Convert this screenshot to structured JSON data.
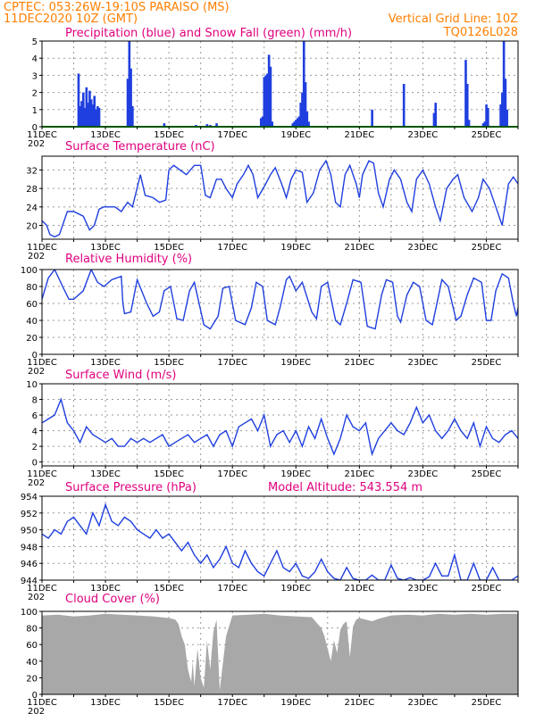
{
  "header": {
    "left_line1": "CPTEC:   053:26W-19:10S   PARAISO (MS)",
    "left_line2": "11DEC2020 10Z (GMT)",
    "right_line1": "Vertical Grid Line: 10Z",
    "right_line2": "TQ0126L028"
  },
  "colors": {
    "header": "#ff7f00",
    "title": "#e0007f",
    "line": "#1f3fdf",
    "snow": "#00aa00",
    "cloud": "#a8a8a8",
    "grid": "#9a9a9a"
  },
  "x_labels": [
    "11DEC",
    "13DEC",
    "15DEC",
    "17DEC",
    "19DEC",
    "21DEC",
    "23DEC",
    "25DEC"
  ],
  "year_label": "202",
  "chart_data": [
    {
      "id": "precip",
      "type": "bar",
      "title": "Precipitation (blue) and Snow Fall (green) (mm/h)",
      "yticks": [
        0,
        1,
        2,
        3,
        4,
        5
      ],
      "ylim": [
        0,
        5
      ],
      "xlim": [
        0,
        15
      ],
      "series": [
        {
          "name": "Precipitation",
          "color": "#1f3fdf",
          "x": [
            1.15,
            1.2,
            1.25,
            1.3,
            1.35,
            1.4,
            1.45,
            1.5,
            1.55,
            1.6,
            1.65,
            1.7,
            1.75,
            1.8,
            2.7,
            2.75,
            2.8,
            2.85,
            3.85,
            4.85,
            5.2,
            5.3,
            5.5,
            6.9,
            6.95,
            7.0,
            7.05,
            7.1,
            7.15,
            7.2,
            7.25,
            7.9,
            7.95,
            8.0,
            8.05,
            8.1,
            8.15,
            8.2,
            8.25,
            8.3,
            8.35,
            8.4,
            10.4,
            11.4,
            12.35,
            12.4,
            13.35,
            13.4,
            13.45,
            13.9,
            13.95,
            14.0,
            14.05,
            14.45,
            14.5,
            14.55,
            14.6,
            14.65
          ],
          "values": [
            3.1,
            1.2,
            1.5,
            2.0,
            1.1,
            2.3,
            1.4,
            2.1,
            1.6,
            1.3,
            1.8,
            1.0,
            1.2,
            1.1,
            2.8,
            5.0,
            3.4,
            1.2,
            0.2,
            0.1,
            0.15,
            0.1,
            0.2,
            0.5,
            0.6,
            2.9,
            3.0,
            3.1,
            4.2,
            3.5,
            0.3,
            0.2,
            0.3,
            0.4,
            0.5,
            0.6,
            1.4,
            2.0,
            5.0,
            2.6,
            0.9,
            0.3,
            1.0,
            2.5,
            0.8,
            1.4,
            3.9,
            2.5,
            0.4,
            0.2,
            0.3,
            1.3,
            1.1,
            1.3,
            2.0,
            5.0,
            2.8,
            1.0
          ]
        },
        {
          "name": "Snow Fall",
          "color": "#00aa00",
          "x": [
            0,
            15
          ],
          "values": [
            0,
            0
          ]
        }
      ]
    },
    {
      "id": "temp",
      "type": "line",
      "title": "Surface Temperature (nC)",
      "yticks": [
        20,
        24,
        28,
        32
      ],
      "ylim": [
        17,
        35
      ],
      "xlim": [
        0,
        15
      ],
      "series": [
        {
          "name": "Temperature",
          "color": "#1f3fdf",
          "x": [
            0,
            0.15,
            0.25,
            0.4,
            0.55,
            0.8,
            1.0,
            1.3,
            1.5,
            1.65,
            1.8,
            1.95,
            2.05,
            2.3,
            2.5,
            2.7,
            2.85,
            3.1,
            3.25,
            3.5,
            3.7,
            3.9,
            4.0,
            4.15,
            4.35,
            4.55,
            4.8,
            5.0,
            5.15,
            5.3,
            5.5,
            5.65,
            5.8,
            6.0,
            6.15,
            6.35,
            6.5,
            6.65,
            6.8,
            7.05,
            7.2,
            7.35,
            7.55,
            7.7,
            7.85,
            8.0,
            8.2,
            8.35,
            8.55,
            8.75,
            8.95,
            9.1,
            9.25,
            9.4,
            9.55,
            9.7,
            9.9,
            10.0,
            10.1,
            10.3,
            10.45,
            10.6,
            10.75,
            10.95,
            11.1,
            11.3,
            11.5,
            11.65,
            11.8,
            12.0,
            12.2,
            12.4,
            12.55,
            12.75,
            12.95,
            13.1,
            13.3,
            13.55,
            13.75,
            13.9,
            14.1,
            14.3,
            14.5,
            14.7,
            14.85,
            15.0
          ],
          "values": [
            21,
            20,
            18,
            17.5,
            18,
            23,
            23,
            22,
            19,
            20,
            23.5,
            24,
            24,
            24,
            23,
            25,
            24,
            31,
            26.5,
            26,
            25,
            25.5,
            32,
            33,
            32,
            31,
            33,
            33,
            26.5,
            26,
            30,
            30,
            28,
            26,
            29,
            31,
            33,
            31,
            26,
            29,
            31,
            32.5,
            29,
            26,
            30,
            32,
            31.5,
            25,
            27,
            32,
            34,
            31,
            25,
            24,
            31,
            33,
            29,
            26,
            31,
            34,
            33.5,
            27,
            24,
            30,
            32,
            30,
            25,
            23,
            30,
            32,
            29,
            24,
            21,
            28,
            30,
            31,
            26,
            23,
            26,
            30,
            28,
            24,
            20,
            29,
            30.5,
            29
          ]
        }
      ]
    },
    {
      "id": "rh",
      "type": "line",
      "title": "Relative Humidity (%)",
      "yticks": [
        0,
        20,
        40,
        60,
        80,
        100
      ],
      "ylim": [
        0,
        100
      ],
      "xlim": [
        0,
        15
      ],
      "series": [
        {
          "name": "Relative Humidity",
          "color": "#1f3fdf",
          "x": [
            0,
            0.2,
            0.4,
            0.65,
            0.85,
            1.0,
            1.3,
            1.55,
            1.75,
            1.95,
            2.2,
            2.5,
            2.55,
            2.6,
            2.8,
            3.0,
            3.3,
            3.5,
            3.7,
            3.85,
            4.05,
            4.25,
            4.45,
            4.65,
            4.8,
            5.1,
            5.3,
            5.55,
            5.7,
            5.9,
            6.1,
            6.4,
            6.6,
            6.75,
            6.95,
            7.1,
            7.35,
            7.5,
            7.7,
            7.8,
            8.0,
            8.2,
            8.5,
            8.65,
            8.8,
            9.0,
            9.25,
            9.4,
            9.6,
            9.8,
            10.05,
            10.25,
            10.5,
            10.7,
            10.85,
            11.05,
            11.2,
            11.3,
            11.5,
            11.7,
            11.9,
            12.1,
            12.3,
            12.5,
            12.6,
            12.8,
            13.05,
            13.2,
            13.4,
            13.6,
            13.85,
            14.0,
            14.15,
            14.3,
            14.5,
            14.7,
            14.85,
            14.95,
            15.0
          ],
          "values": [
            65,
            90,
            100,
            80,
            65,
            65,
            75,
            100,
            85,
            80,
            88,
            92,
            60,
            48,
            50,
            88,
            60,
            45,
            50,
            75,
            80,
            42,
            40,
            75,
            85,
            35,
            30,
            45,
            78,
            80,
            40,
            35,
            55,
            85,
            80,
            40,
            35,
            55,
            88,
            92,
            75,
            85,
            50,
            42,
            80,
            85,
            40,
            35,
            60,
            88,
            85,
            33,
            30,
            70,
            88,
            85,
            45,
            38,
            70,
            85,
            80,
            40,
            35,
            70,
            88,
            80,
            40,
            45,
            70,
            90,
            85,
            40,
            40,
            75,
            95,
            90,
            60,
            45,
            55
          ]
        }
      ]
    },
    {
      "id": "wind",
      "type": "line",
      "title": "Surface Wind (m/s)",
      "yticks": [
        0,
        2,
        4,
        6,
        8,
        10
      ],
      "ylim": [
        -0.5,
        10
      ],
      "xlim": [
        0,
        15
      ],
      "series": [
        {
          "name": "Wind Speed",
          "color": "#1f3fdf",
          "x": [
            0,
            0.2,
            0.4,
            0.6,
            0.8,
            1.0,
            1.2,
            1.4,
            1.6,
            1.8,
            2.0,
            2.2,
            2.4,
            2.6,
            2.8,
            3.0,
            3.2,
            3.4,
            3.6,
            3.8,
            4.0,
            4.2,
            4.4,
            4.6,
            4.8,
            5.0,
            5.2,
            5.4,
            5.6,
            5.8,
            6.0,
            6.2,
            6.4,
            6.6,
            6.8,
            7.0,
            7.2,
            7.4,
            7.6,
            7.8,
            8.0,
            8.2,
            8.4,
            8.6,
            8.8,
            9.0,
            9.2,
            9.4,
            9.6,
            9.8,
            10.0,
            10.2,
            10.4,
            10.6,
            10.8,
            11.0,
            11.2,
            11.4,
            11.6,
            11.8,
            12.0,
            12.2,
            12.4,
            12.6,
            12.8,
            13.0,
            13.2,
            13.4,
            13.6,
            13.8,
            14.0,
            14.2,
            14.4,
            14.6,
            14.8,
            15.0
          ],
          "values": [
            5,
            5.5,
            6,
            8,
            5,
            4,
            2.5,
            4.5,
            3.5,
            3,
            2.5,
            3,
            2,
            2,
            3,
            2.5,
            3,
            2.5,
            3,
            3.5,
            2,
            2.5,
            3,
            3.5,
            2.5,
            3,
            3.5,
            2,
            3.5,
            4,
            2,
            4.5,
            5,
            5.5,
            4,
            6,
            2,
            3.5,
            4,
            2.5,
            4,
            2,
            4.5,
            3,
            5.5,
            3,
            1,
            3,
            6,
            4.5,
            4,
            5,
            1,
            3,
            4,
            5,
            4,
            3.5,
            5,
            7,
            5,
            6,
            4,
            3,
            4,
            5.5,
            4,
            3,
            5,
            2,
            4.5,
            3,
            2.5,
            3.5,
            4,
            3
          ]
        }
      ]
    },
    {
      "id": "pressure",
      "type": "line",
      "title": "Surface Pressure (hPa)",
      "annotation": "Model Altitude: 543.554  m",
      "yticks": [
        944,
        946,
        948,
        950,
        952,
        954
      ],
      "ylim": [
        944,
        954
      ],
      "xlim": [
        0,
        15
      ],
      "series": [
        {
          "name": "Surface Pressure",
          "color": "#1f3fdf",
          "x": [
            0,
            0.2,
            0.4,
            0.6,
            0.8,
            1.0,
            1.2,
            1.4,
            1.6,
            1.8,
            2.0,
            2.2,
            2.4,
            2.6,
            2.8,
            3.0,
            3.2,
            3.4,
            3.6,
            3.8,
            4.0,
            4.2,
            4.4,
            4.6,
            4.8,
            5.0,
            5.2,
            5.4,
            5.6,
            5.8,
            6.0,
            6.2,
            6.4,
            6.6,
            6.8,
            7.0,
            7.2,
            7.4,
            7.6,
            7.8,
            8.0,
            8.2,
            8.4,
            8.6,
            8.8,
            9.0,
            9.2,
            9.4,
            9.6,
            9.8,
            10.0,
            10.2,
            10.4,
            10.6,
            10.8,
            11.0,
            11.2,
            11.4,
            11.6,
            11.8,
            12.0,
            12.2,
            12.4,
            12.6,
            12.8,
            13.0,
            13.2,
            13.4,
            13.6,
            13.8,
            14.0,
            14.2,
            14.4,
            14.6,
            14.8,
            15.0
          ],
          "values": [
            949.5,
            949,
            950,
            949.5,
            951,
            951.5,
            950.5,
            949.5,
            952,
            950.5,
            953,
            951,
            950.5,
            951.5,
            951,
            950,
            949.5,
            949,
            950,
            949,
            949.5,
            948.5,
            947.5,
            948.5,
            947,
            946,
            947,
            945.5,
            946.5,
            948,
            946,
            945.5,
            947.5,
            946,
            945,
            944.5,
            946,
            947.5,
            945.5,
            945,
            946,
            944.5,
            944.2,
            945,
            946.5,
            945,
            944.2,
            944,
            945.5,
            944.2,
            944,
            944,
            944.6,
            944,
            944,
            945.8,
            944.2,
            944,
            944.3,
            944,
            944,
            944.4,
            946,
            944.5,
            944.5,
            947,
            944,
            944,
            946,
            944,
            944,
            945.5,
            944,
            944,
            944,
            944.5
          ]
        }
      ]
    },
    {
      "id": "cloud",
      "type": "area",
      "title": "Cloud Cover (%)",
      "yticks": [
        0,
        20,
        40,
        60,
        80,
        100
      ],
      "ylim": [
        0,
        100
      ],
      "xlim": [
        0,
        15
      ],
      "series": [
        {
          "name": "Cloud Cover",
          "color": "#a8a8a8",
          "x": [
            0,
            0.5,
            1.0,
            1.5,
            2.0,
            2.5,
            3.0,
            3.5,
            4.0,
            4.2,
            4.3,
            4.4,
            4.5,
            4.6,
            4.7,
            4.75,
            4.8,
            4.9,
            5.0,
            5.1,
            5.2,
            5.3,
            5.4,
            5.5,
            5.6,
            5.8,
            6.0,
            6.5,
            7.0,
            7.5,
            8.0,
            8.5,
            8.8,
            8.9,
            9.0,
            9.1,
            9.2,
            9.3,
            9.4,
            9.5,
            9.6,
            9.7,
            9.8,
            9.9,
            10.0,
            10.2,
            10.4,
            10.6,
            10.8,
            11.0,
            11.5,
            12.0,
            12.5,
            13.0,
            13.5,
            14.0,
            14.5,
            15.0
          ],
          "values": [
            95,
            96,
            94,
            95,
            97,
            96,
            95,
            94,
            92,
            90,
            85,
            70,
            60,
            30,
            15,
            40,
            10,
            55,
            20,
            8,
            65,
            30,
            75,
            90,
            5,
            70,
            95,
            96,
            97,
            95,
            94,
            93,
            80,
            70,
            55,
            40,
            65,
            50,
            78,
            85,
            88,
            45,
            82,
            90,
            92,
            90,
            88,
            91,
            93,
            95,
            96,
            95,
            97,
            96,
            97,
            96,
            97,
            97
          ]
        }
      ]
    }
  ]
}
